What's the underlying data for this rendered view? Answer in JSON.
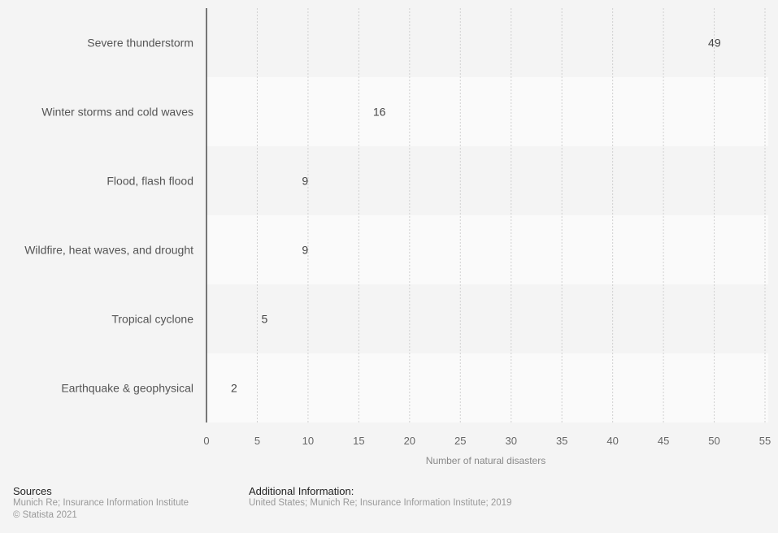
{
  "chart_data": {
    "type": "bar",
    "orientation": "horizontal",
    "title": "",
    "categories": [
      "Severe thunderstorm",
      "Winter storms and cold waves",
      "Flood, flash flood",
      "Wildfire, heat waves, and drought",
      "Tropical cyclone",
      "Earthquake & geophysical"
    ],
    "values": [
      49,
      16,
      9,
      9,
      5,
      2
    ],
    "xlabel": "Number of natural disasters",
    "ylabel": "",
    "xlim": [
      0,
      55
    ],
    "xticks": [
      0,
      5,
      10,
      15,
      20,
      25,
      30,
      35,
      40,
      45,
      50,
      55
    ],
    "grid": true,
    "data_labels": true,
    "bar_color": "#2876dd"
  },
  "footer": {
    "sources_heading": "Sources",
    "sources_text": "Munich Re; Insurance Information Institute",
    "copyright": "© Statista 2021",
    "additional_heading": "Additional Information:",
    "additional_text": "United States; Munich Re; Insurance Information Institute; 2019"
  }
}
